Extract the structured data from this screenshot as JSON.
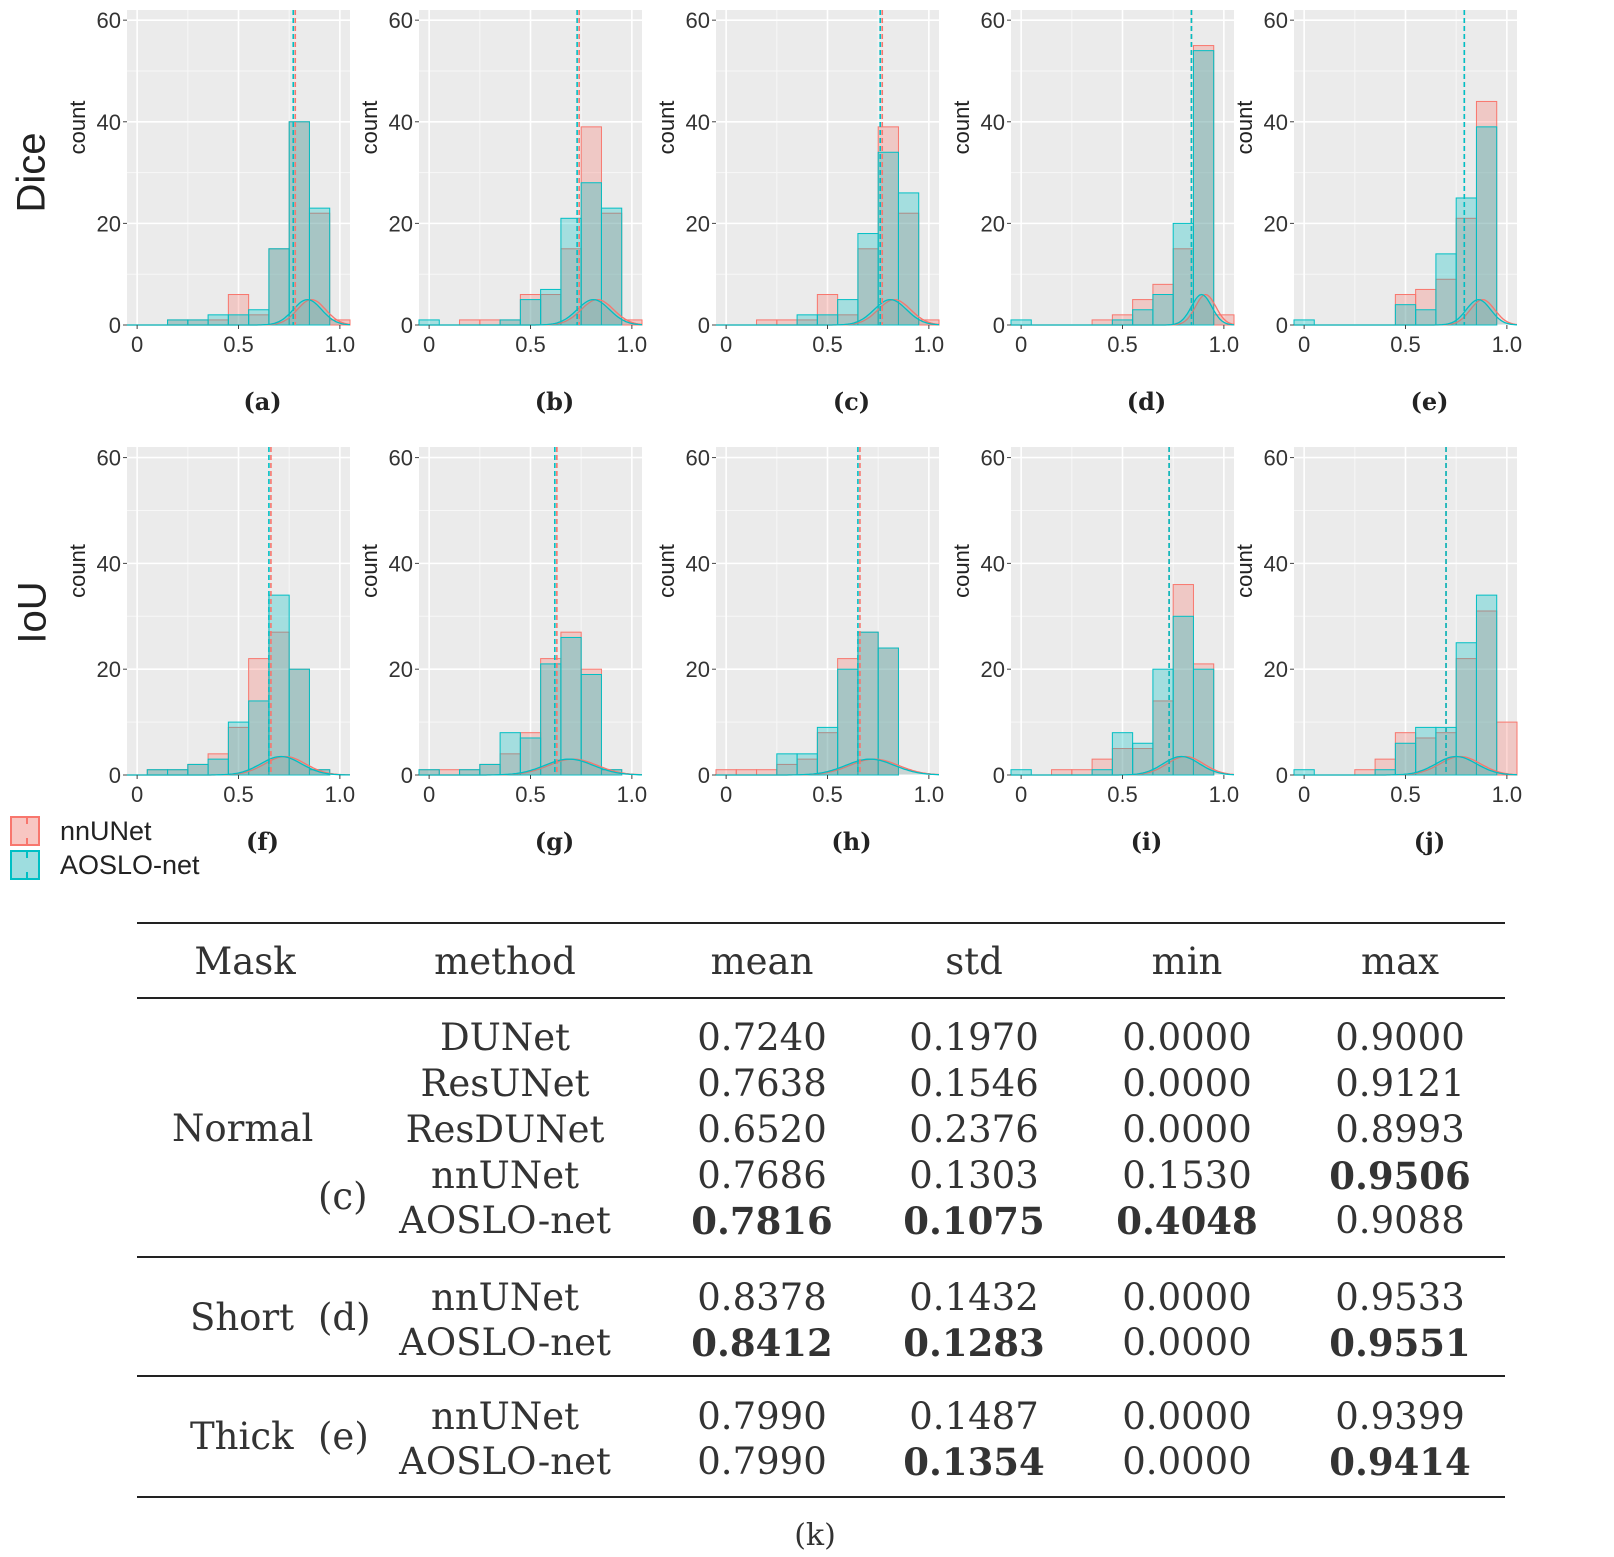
{
  "row_labels": [
    "Dice",
    "IoU"
  ],
  "legend": [
    {
      "label": "nnUNet",
      "color": "#F8766D"
    },
    {
      "label": "AOSLO-net",
      "color": "#00BFC4"
    }
  ],
  "colors": {
    "nnUNet": "#F8766D",
    "AOSLO-net": "#00BFC4",
    "panel_bg": "#EBEBEB",
    "grid": "#FFFFFF"
  },
  "chart_data": [
    {
      "type": "bar",
      "id": "a",
      "caption": "(a)",
      "metric": "Dice",
      "ylabel": "count",
      "xlim": [
        -0.05,
        1.05
      ],
      "ylim": [
        0,
        62
      ],
      "yticks": [
        0,
        20,
        40,
        60
      ],
      "xticks": [
        0,
        0.5,
        1.0
      ],
      "xtick_labels": [
        "0",
        "0.5",
        "1.0"
      ],
      "bin_width": 0.1,
      "bin_centers": [
        0.0,
        0.1,
        0.2,
        0.3,
        0.4,
        0.5,
        0.6,
        0.7,
        0.8,
        0.9,
        1.0
      ],
      "series": [
        {
          "name": "nnUNet",
          "values": [
            0,
            0,
            1,
            1,
            1,
            6,
            2,
            15,
            40,
            22,
            1
          ],
          "mean_line": 0.78
        },
        {
          "name": "AOSLO-net",
          "values": [
            0,
            0,
            1,
            1,
            2,
            2,
            3,
            15,
            40,
            23,
            0
          ],
          "mean_line": 0.77
        }
      ],
      "density_peak": {
        "center": 0.85,
        "height": 5,
        "sd": 0.07
      }
    },
    {
      "type": "bar",
      "id": "b",
      "caption": "(b)",
      "metric": "Dice",
      "ylabel": "count",
      "xlim": [
        -0.05,
        1.05
      ],
      "ylim": [
        0,
        62
      ],
      "yticks": [
        0,
        20,
        40,
        60
      ],
      "xticks": [
        0,
        0.5,
        1.0
      ],
      "xtick_labels": [
        "0",
        "0.5",
        "1.0"
      ],
      "bin_width": 0.1,
      "bin_centers": [
        0.0,
        0.1,
        0.2,
        0.3,
        0.4,
        0.5,
        0.6,
        0.7,
        0.8,
        0.9,
        1.0
      ],
      "series": [
        {
          "name": "nnUNet",
          "values": [
            0,
            0,
            1,
            1,
            1,
            6,
            6,
            15,
            39,
            22,
            1
          ],
          "mean_line": 0.74
        },
        {
          "name": "AOSLO-net",
          "values": [
            1,
            0,
            0,
            0,
            1,
            5,
            7,
            21,
            28,
            23,
            0
          ],
          "mean_line": 0.73
        }
      ],
      "density_peak": {
        "center": 0.82,
        "height": 5,
        "sd": 0.08
      }
    },
    {
      "type": "bar",
      "id": "c",
      "caption": "(c)",
      "metric": "Dice",
      "ylabel": "count",
      "xlim": [
        -0.05,
        1.05
      ],
      "ylim": [
        0,
        62
      ],
      "yticks": [
        0,
        20,
        40,
        60
      ],
      "xticks": [
        0,
        0.5,
        1.0
      ],
      "xtick_labels": [
        "0",
        "0.5",
        "1.0"
      ],
      "bin_width": 0.1,
      "bin_centers": [
        0.0,
        0.1,
        0.2,
        0.3,
        0.4,
        0.5,
        0.6,
        0.7,
        0.8,
        0.9,
        1.0
      ],
      "series": [
        {
          "name": "nnUNet",
          "values": [
            0,
            0,
            1,
            1,
            1,
            6,
            2,
            15,
            39,
            22,
            1
          ],
          "mean_line": 0.77
        },
        {
          "name": "AOSLO-net",
          "values": [
            0,
            0,
            0,
            0,
            2,
            2,
            5,
            18,
            34,
            26,
            0
          ],
          "mean_line": 0.76
        }
      ],
      "density_peak": {
        "center": 0.82,
        "height": 5,
        "sd": 0.08
      }
    },
    {
      "type": "bar",
      "id": "d",
      "caption": "(d)",
      "metric": "Dice",
      "ylabel": "count",
      "xlim": [
        -0.05,
        1.05
      ],
      "ylim": [
        0,
        62
      ],
      "yticks": [
        0,
        20,
        40,
        60
      ],
      "xticks": [
        0,
        0.5,
        1.0
      ],
      "xtick_labels": [
        "0",
        "0.5",
        "1.0"
      ],
      "bin_width": 0.1,
      "bin_centers": [
        0.0,
        0.1,
        0.2,
        0.3,
        0.4,
        0.5,
        0.6,
        0.7,
        0.8,
        0.9,
        1.0
      ],
      "series": [
        {
          "name": "nnUNet",
          "values": [
            0,
            0,
            0,
            0,
            1,
            2,
            5,
            8,
            15,
            55,
            2
          ],
          "mean_line": 0.84
        },
        {
          "name": "AOSLO-net",
          "values": [
            1,
            0,
            0,
            0,
            0,
            1,
            3,
            6,
            20,
            54,
            0
          ],
          "mean_line": 0.84
        }
      ],
      "density_peak": {
        "center": 0.9,
        "height": 6,
        "sd": 0.05
      }
    },
    {
      "type": "bar",
      "id": "e",
      "caption": "(e)",
      "metric": "Dice",
      "ylabel": "count",
      "xlim": [
        -0.05,
        1.05
      ],
      "ylim": [
        0,
        62
      ],
      "yticks": [
        0,
        20,
        40,
        60
      ],
      "xticks": [
        0,
        0.5,
        1.0
      ],
      "xtick_labels": [
        "0",
        "0.5",
        "1.0"
      ],
      "bin_width": 0.1,
      "bin_centers": [
        0.0,
        0.1,
        0.2,
        0.3,
        0.4,
        0.5,
        0.6,
        0.7,
        0.8,
        0.9,
        1.0
      ],
      "series": [
        {
          "name": "nnUNet",
          "values": [
            0,
            0,
            0,
            0,
            0,
            6,
            7,
            9,
            21,
            44,
            0
          ],
          "mean_line": 0.79
        },
        {
          "name": "AOSLO-net",
          "values": [
            1,
            0,
            0,
            0,
            0,
            4,
            3,
            14,
            25,
            39,
            0
          ],
          "mean_line": 0.79
        }
      ],
      "density_peak": {
        "center": 0.87,
        "height": 5,
        "sd": 0.06
      }
    },
    {
      "type": "bar",
      "id": "f",
      "caption": "(f)",
      "metric": "IoU",
      "ylabel": "count",
      "xlim": [
        -0.05,
        1.05
      ],
      "ylim": [
        0,
        62
      ],
      "yticks": [
        0,
        20,
        40,
        60
      ],
      "xticks": [
        0,
        0.5,
        1.0
      ],
      "xtick_labels": [
        "0",
        "0.5",
        "1.0"
      ],
      "bin_width": 0.1,
      "bin_centers": [
        0.0,
        0.1,
        0.2,
        0.3,
        0.4,
        0.5,
        0.6,
        0.7,
        0.8,
        0.9,
        1.0
      ],
      "series": [
        {
          "name": "nnUNet",
          "values": [
            0,
            1,
            1,
            2,
            4,
            9,
            22,
            27,
            20,
            1,
            0
          ],
          "mean_line": 0.66
        },
        {
          "name": "AOSLO-net",
          "values": [
            0,
            1,
            1,
            2,
            3,
            10,
            14,
            34,
            20,
            1,
            0
          ],
          "mean_line": 0.65
        }
      ],
      "density_peak": {
        "center": 0.72,
        "height": 3.5,
        "sd": 0.1
      }
    },
    {
      "type": "bar",
      "id": "g",
      "caption": "(g)",
      "metric": "IoU",
      "ylabel": "count",
      "xlim": [
        -0.05,
        1.05
      ],
      "ylim": [
        0,
        62
      ],
      "yticks": [
        0,
        20,
        40,
        60
      ],
      "xticks": [
        0,
        0.5,
        1.0
      ],
      "xtick_labels": [
        "0",
        "0.5",
        "1.0"
      ],
      "bin_width": 0.1,
      "bin_centers": [
        0.0,
        0.1,
        0.2,
        0.3,
        0.4,
        0.5,
        0.6,
        0.7,
        0.8,
        0.9,
        1.0
      ],
      "series": [
        {
          "name": "nnUNet",
          "values": [
            1,
            1,
            1,
            2,
            4,
            8,
            22,
            27,
            20,
            1,
            0
          ],
          "mean_line": 0.63
        },
        {
          "name": "AOSLO-net",
          "values": [
            1,
            0,
            1,
            2,
            8,
            7,
            21,
            26,
            19,
            1,
            0
          ],
          "mean_line": 0.62
        }
      ],
      "density_peak": {
        "center": 0.7,
        "height": 3,
        "sd": 0.12
      }
    },
    {
      "type": "bar",
      "id": "h",
      "caption": "(h)",
      "metric": "IoU",
      "ylabel": "count",
      "xlim": [
        -0.05,
        1.05
      ],
      "ylim": [
        0,
        62
      ],
      "yticks": [
        0,
        20,
        40,
        60
      ],
      "xticks": [
        0,
        0.5,
        1.0
      ],
      "xtick_labels": [
        "0",
        "0.5",
        "1.0"
      ],
      "bin_width": 0.1,
      "bin_centers": [
        0.0,
        0.1,
        0.2,
        0.3,
        0.4,
        0.5,
        0.6,
        0.7,
        0.8,
        0.9,
        1.0
      ],
      "series": [
        {
          "name": "nnUNet",
          "values": [
            1,
            1,
            1,
            2,
            3,
            8,
            22,
            27,
            24,
            0,
            0
          ],
          "mean_line": 0.66
        },
        {
          "name": "AOSLO-net",
          "values": [
            0,
            0,
            0,
            4,
            4,
            9,
            20,
            27,
            24,
            0,
            0
          ],
          "mean_line": 0.65
        }
      ],
      "density_peak": {
        "center": 0.72,
        "height": 3,
        "sd": 0.12
      }
    },
    {
      "type": "bar",
      "id": "i",
      "caption": "(i)",
      "metric": "IoU",
      "ylabel": "count",
      "xlim": [
        -0.05,
        1.05
      ],
      "ylim": [
        0,
        62
      ],
      "yticks": [
        0,
        20,
        40,
        60
      ],
      "xticks": [
        0,
        0.5,
        1.0
      ],
      "xtick_labels": [
        "0",
        "0.5",
        "1.0"
      ],
      "bin_width": 0.1,
      "bin_centers": [
        0.0,
        0.1,
        0.2,
        0.3,
        0.4,
        0.5,
        0.6,
        0.7,
        0.8,
        0.9,
        1.0
      ],
      "series": [
        {
          "name": "nnUNet",
          "values": [
            0,
            0,
            1,
            1,
            3,
            5,
            5,
            14,
            36,
            21,
            0
          ],
          "mean_line": 0.73
        },
        {
          "name": "AOSLO-net",
          "values": [
            1,
            0,
            0,
            0,
            1,
            8,
            6,
            20,
            30,
            20,
            0
          ],
          "mean_line": 0.73
        }
      ],
      "density_peak": {
        "center": 0.8,
        "height": 3.5,
        "sd": 0.09
      }
    },
    {
      "type": "bar",
      "id": "j",
      "caption": "(j)",
      "metric": "IoU",
      "ylabel": "count",
      "xlim": [
        -0.05,
        1.05
      ],
      "ylim": [
        0,
        62
      ],
      "yticks": [
        0,
        20,
        40,
        60
      ],
      "xticks": [
        0,
        0.5,
        1.0
      ],
      "xtick_labels": [
        "0",
        "0.5",
        "1.0"
      ],
      "bin_width": 0.1,
      "bin_centers": [
        0.0,
        0.1,
        0.2,
        0.3,
        0.4,
        0.5,
        0.6,
        0.7,
        0.8,
        0.9,
        1.0
      ],
      "series": [
        {
          "name": "nnUNet",
          "values": [
            0,
            0,
            0,
            1,
            3,
            8,
            7,
            8,
            22,
            31,
            10
          ],
          "mean_line": 0.7
        },
        {
          "name": "AOSLO-net",
          "values": [
            1,
            0,
            0,
            0,
            1,
            6,
            9,
            9,
            25,
            34,
            0
          ],
          "mean_line": 0.7
        }
      ],
      "density_peak": {
        "center": 0.76,
        "height": 3.5,
        "sd": 0.1
      }
    }
  ],
  "table": {
    "caption": "(k)",
    "headers": [
      "Mask",
      "method",
      "mean",
      "std",
      "min",
      "max"
    ],
    "groups": [
      {
        "mask": "Normal",
        "sub": "(c)",
        "rows": [
          {
            "method": "DUNet",
            "mean": "0.7240",
            "std": "0.1970",
            "min": "0.0000",
            "max": "0.9000",
            "bold": []
          },
          {
            "method": "ResUNet",
            "mean": "0.7638",
            "std": "0.1546",
            "min": "0.0000",
            "max": "0.9121",
            "bold": []
          },
          {
            "method": "ResDUNet",
            "mean": "0.6520",
            "std": "0.2376",
            "min": "0.0000",
            "max": "0.8993",
            "bold": []
          },
          {
            "method": "nnUNet",
            "mean": "0.7686",
            "std": "0.1303",
            "min": "0.1530",
            "max": "0.9506",
            "bold": [
              "max"
            ]
          },
          {
            "method": "AOSLO-net",
            "mean": "0.7816",
            "std": "0.1075",
            "min": "0.4048",
            "max": "0.9088",
            "bold": [
              "mean",
              "std",
              "min"
            ]
          }
        ]
      },
      {
        "mask": "Short",
        "sub": "(d)",
        "rows": [
          {
            "method": "nnUNet",
            "mean": "0.8378",
            "std": "0.1432",
            "min": "0.0000",
            "max": "0.9533",
            "bold": []
          },
          {
            "method": "AOSLO-net",
            "mean": "0.8412",
            "std": "0.1283",
            "min": "0.0000",
            "max": "0.9551",
            "bold": [
              "mean",
              "std",
              "max"
            ]
          }
        ]
      },
      {
        "mask": "Thick",
        "sub": "(e)",
        "rows": [
          {
            "method": "nnUNet",
            "mean": "0.7990",
            "std": "0.1487",
            "min": "0.0000",
            "max": "0.9399",
            "bold": []
          },
          {
            "method": "AOSLO-net",
            "mean": "0.7990",
            "std": "0.1354",
            "min": "0.0000",
            "max": "0.9414",
            "bold": [
              "std",
              "max"
            ]
          }
        ]
      }
    ]
  }
}
